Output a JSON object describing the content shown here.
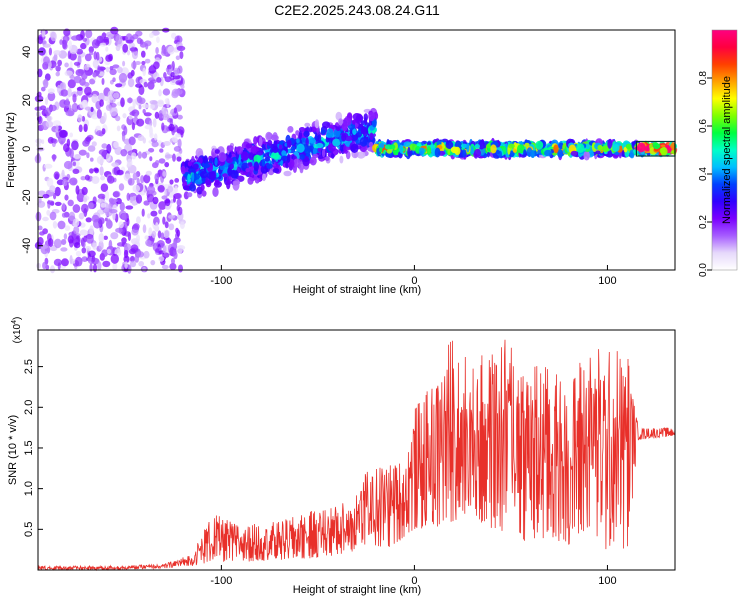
{
  "figure": {
    "title": "C2E2.2025.243.08.24.G11"
  },
  "chart_data": [
    {
      "type": "heatmap",
      "title": "C2E2.2025.243.08.24.G11",
      "xlabel": "Height of straight line (km)",
      "ylabel": "Frequency (Hz)",
      "xlim": [
        -195,
        135
      ],
      "ylim": [
        -50,
        49
      ],
      "xticks": [
        -100,
        0,
        100
      ],
      "xtick_labels": [
        "-100",
        "0",
        "100"
      ],
      "yticks": [
        -40,
        -20,
        0,
        20,
        40
      ],
      "ytick_labels": [
        "-40",
        "-20",
        "0",
        "20",
        "40"
      ],
      "colorbar": {
        "label": "Normalized spectral amplitude",
        "range": [
          0,
          1
        ],
        "ticks": [
          0.0,
          0.2,
          0.4,
          0.6,
          0.8
        ],
        "tick_labels": [
          "0.0",
          "0.2",
          "0.4",
          "0.6",
          "0.8"
        ],
        "colors": [
          "#ffffff",
          "#e6d9fb",
          "#a65cff",
          "#7a00ff",
          "#3000ff",
          "#0040ff",
          "#00bfff",
          "#00ffc8",
          "#00ff40",
          "#80ff00",
          "#ffff00",
          "#ffa000",
          "#ff4000",
          "#ff0040",
          "#ff0080"
        ]
      },
      "regions": [
        {
          "x_range": [
            -195,
            -120
          ],
          "freq_range": [
            -50,
            49
          ],
          "amplitude": 0.15,
          "description": "broadband noise"
        },
        {
          "x_range": [
            -120,
            -20
          ],
          "freq_center": [
            -12,
            8
          ],
          "freq_spread": 10,
          "amplitude": 0.35
        },
        {
          "x_range": [
            -20,
            115
          ],
          "freq_center": [
            0,
            0
          ],
          "freq_spread": 3,
          "amplitude": 0.6
        },
        {
          "x_range": [
            115,
            135
          ],
          "freq_center": [
            0,
            0
          ],
          "freq_spread": 2,
          "amplitude": 0.95
        }
      ],
      "grid": false
    },
    {
      "type": "line",
      "xlabel": "Height of straight line (km)",
      "ylabel": "SNR (10 * v/v)",
      "y_multiplier_label": "(x10",
      "y_multiplier_exp": "4",
      "xlim": [
        -195,
        135
      ],
      "ylim": [
        0,
        2.95
      ],
      "xticks": [
        -100,
        0,
        100
      ],
      "xtick_labels": [
        "-100",
        "0",
        "100"
      ],
      "yticks": [
        0.5,
        1.0,
        1.5,
        2.0,
        2.5
      ],
      "ytick_labels": [
        "0.5",
        "1.0",
        "1.5",
        "2.0",
        "2.5"
      ],
      "series": [
        {
          "color": "#e8302a",
          "envelope_x": [
            -195,
            -160,
            -130,
            -115,
            -105,
            -90,
            -70,
            -50,
            -35,
            -25,
            -15,
            -5,
            0,
            10,
            20,
            30,
            40,
            50,
            60,
            70,
            80,
            90,
            100,
            110,
            116,
            125,
            135
          ],
          "envelope_min": [
            0.0,
            0.0,
            0.02,
            0.05,
            0.1,
            0.1,
            0.12,
            0.15,
            0.2,
            0.3,
            0.25,
            0.4,
            0.5,
            0.5,
            0.6,
            0.7,
            0.4,
            0.5,
            0.3,
            0.4,
            0.3,
            0.5,
            0.2,
            0.2,
            1.6,
            1.62,
            1.65
          ],
          "envelope_max": [
            0.05,
            0.05,
            0.07,
            0.2,
            0.7,
            0.55,
            0.6,
            0.75,
            0.85,
            1.2,
            1.35,
            1.35,
            2.0,
            2.3,
            2.95,
            2.5,
            2.8,
            2.9,
            2.6,
            2.5,
            2.3,
            2.85,
            2.7,
            2.8,
            1.75,
            1.75,
            1.75
          ]
        }
      ],
      "grid": false
    }
  ]
}
